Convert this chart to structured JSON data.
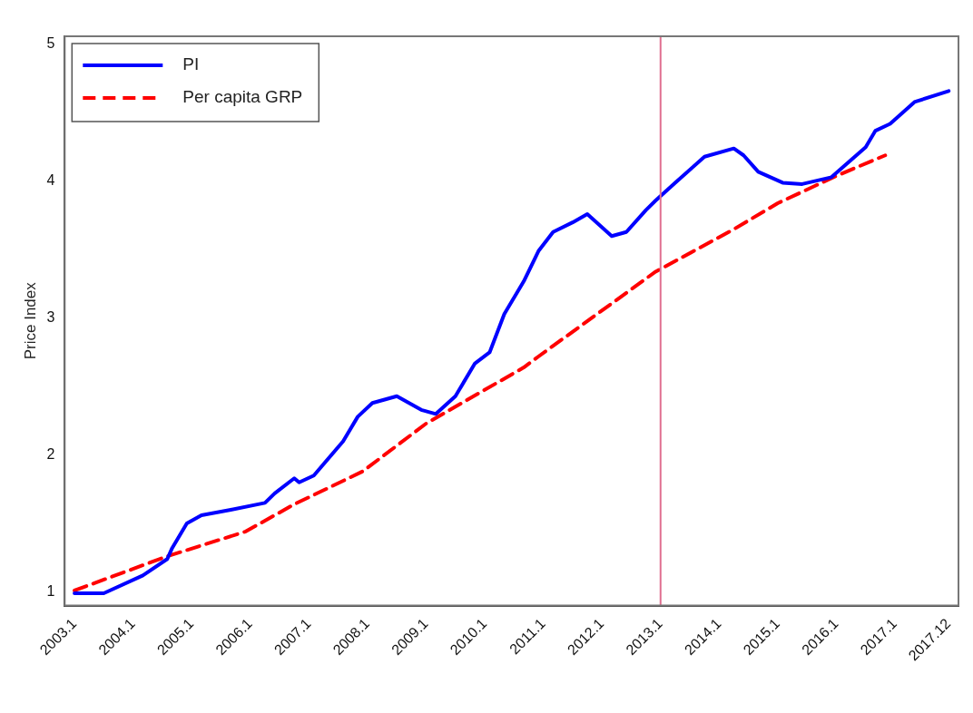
{
  "chart_data": {
    "type": "line",
    "ylabel": "Price Index",
    "xlim": [
      "2002-11",
      "2018-02"
    ],
    "ylim": [
      0.9,
      5.06
    ],
    "xticks": [
      {
        "value": "2003-01",
        "label": "2003.1"
      },
      {
        "value": "2004-01",
        "label": "2004.1"
      },
      {
        "value": "2005-01",
        "label": "2005.1"
      },
      {
        "value": "2006-01",
        "label": "2006.1"
      },
      {
        "value": "2007-01",
        "label": "2007.1"
      },
      {
        "value": "2008-01",
        "label": "2008.1"
      },
      {
        "value": "2009-01",
        "label": "2009.1"
      },
      {
        "value": "2010-01",
        "label": "2010.1"
      },
      {
        "value": "2011-01",
        "label": "2011.1"
      },
      {
        "value": "2012-01",
        "label": "2012.1"
      },
      {
        "value": "2013-01",
        "label": "2013.1"
      },
      {
        "value": "2014-01",
        "label": "2014.1"
      },
      {
        "value": "2015-01",
        "label": "2015.1"
      },
      {
        "value": "2016-01",
        "label": "2016.1"
      },
      {
        "value": "2017-01",
        "label": "2017.1"
      },
      {
        "value": "2017-12",
        "label": "2017.12"
      }
    ],
    "yticks": [
      1,
      2,
      3,
      4,
      5
    ],
    "grid": false,
    "legend": "top left",
    "marker": "none",
    "ref_lines": [
      {
        "axis": "x",
        "value": "2013-01",
        "color": "#e07090"
      }
    ],
    "series": [
      {
        "name": "PI",
        "color": "#0000ff",
        "line_style": "solid",
        "x": [
          "2003-01",
          "2003-07",
          "2004-03",
          "2004-08",
          "2004-09",
          "2004-12",
          "2005-03",
          "2005-09",
          "2006-04",
          "2006-06",
          "2006-10",
          "2006-11",
          "2007-02",
          "2007-08",
          "2007-11",
          "2008-02",
          "2008-07",
          "2008-12",
          "2009-03",
          "2009-07",
          "2009-11",
          "2010-02",
          "2010-05",
          "2010-09",
          "2010-12",
          "2011-03",
          "2011-07",
          "2011-10",
          "2012-03",
          "2012-06",
          "2012-10",
          "2012-12",
          "2013-04",
          "2013-10",
          "2014-04",
          "2014-06",
          "2014-09",
          "2015-02",
          "2015-06",
          "2015-12",
          "2016-07",
          "2016-09",
          "2016-12",
          "2017-05",
          "2017-12"
        ],
        "values": [
          0.99,
          0.99,
          1.12,
          1.24,
          1.32,
          1.5,
          1.56,
          1.6,
          1.65,
          1.72,
          1.83,
          1.8,
          1.85,
          2.1,
          2.28,
          2.38,
          2.43,
          2.33,
          2.3,
          2.43,
          2.67,
          2.75,
          3.03,
          3.27,
          3.49,
          3.63,
          3.7,
          3.76,
          3.6,
          3.63,
          3.79,
          3.86,
          3.99,
          4.18,
          4.24,
          4.19,
          4.07,
          3.99,
          3.98,
          4.03,
          4.25,
          4.37,
          4.42,
          4.58,
          4.66
        ]
      },
      {
        "name": "Per capita GRP",
        "color": "#ff0000",
        "line_style": "dashed",
        "x": [
          "2003-01",
          "2004-08",
          "2005-12",
          "2006-10",
          "2007-12",
          "2009-01",
          "2010-09",
          "2010-12",
          "2011-12",
          "2012-12",
          "2014-04",
          "2015-01",
          "2016-01",
          "2016-11"
        ],
        "values": [
          1.01,
          1.26,
          1.44,
          1.64,
          1.88,
          2.23,
          2.64,
          2.72,
          3.03,
          3.34,
          3.65,
          3.84,
          4.04,
          4.19
        ]
      }
    ]
  }
}
